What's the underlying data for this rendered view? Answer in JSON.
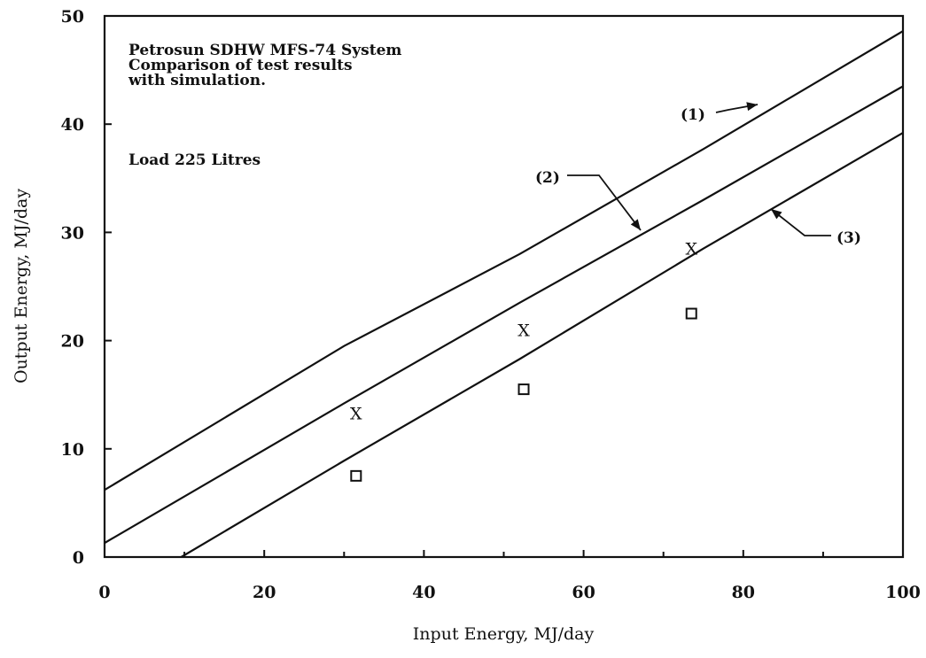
{
  "chart_data": {
    "type": "line",
    "xlabel": "Input Energy, MJ/day",
    "ylabel": "Output Energy, MJ/day",
    "xlim": [
      0,
      100
    ],
    "ylim": [
      0,
      50
    ],
    "x_ticks": [
      "0",
      "20",
      "40",
      "60",
      "80",
      "100"
    ],
    "y_ticks": [
      "0",
      "10",
      "20",
      "30",
      "40",
      "50"
    ],
    "grid": false,
    "annotations": {
      "title_lines": [
        "Petrosun SDHW MFS-74 System",
        "Comparison of test results",
        "with simulation."
      ],
      "load": "Load 225 Litres"
    },
    "series": [
      {
        "label": "(1)",
        "x": [
          0,
          30,
          52,
          75,
          100
        ],
        "y": [
          6.2,
          19.5,
          28.0,
          37.7,
          48.6
        ]
      },
      {
        "label": "(2)",
        "x": [
          0,
          30,
          52,
          75,
          100
        ],
        "y": [
          1.3,
          14.2,
          23.5,
          33.0,
          43.5
        ]
      },
      {
        "label": "(3)",
        "x": [
          9.6,
          30,
          52,
          75,
          100
        ],
        "y": [
          0,
          8.9,
          18.3,
          28.5,
          39.2
        ]
      }
    ],
    "points": {
      "x_marker": {
        "symbol": "X",
        "x": [
          31.5,
          52.5,
          73.5
        ],
        "y": [
          13.3,
          21.0,
          28.5
        ]
      },
      "square_marker": {
        "x": [
          31.5,
          52.5,
          73.5
        ],
        "y": [
          7.5,
          15.5,
          22.5
        ]
      }
    }
  }
}
